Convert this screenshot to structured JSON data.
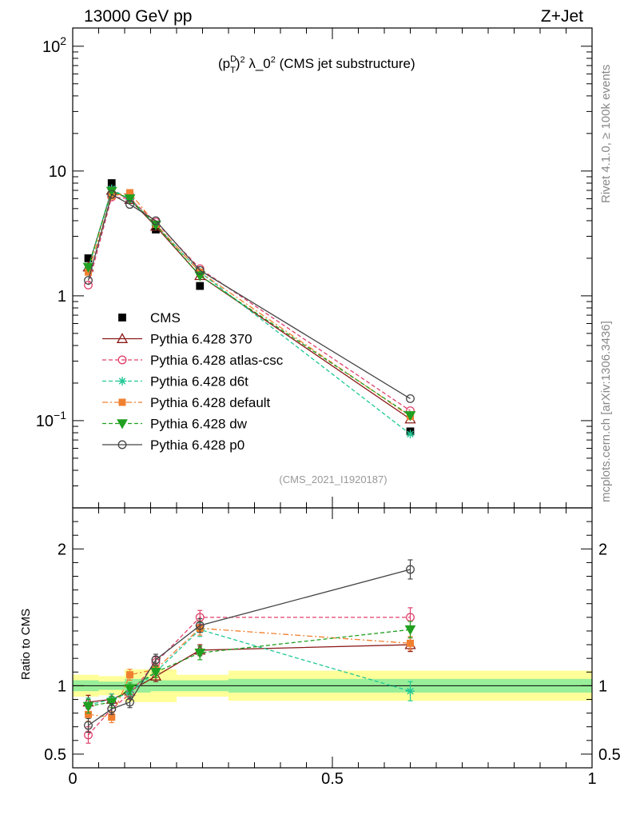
{
  "header": {
    "energy_label": "13000 GeV pp",
    "process_label": "Z+Jet",
    "side_label_top": "Rivet 4.1.0, ≥ 100k events",
    "side_label_bottom": "mcplots.cern.ch [arXiv:1306.3436]"
  },
  "chart_data": [
    {
      "type": "line",
      "scale": "log",
      "title_parts": {
        "p": "(p",
        "sub": "T",
        "sup": "D",
        "post": ")",
        "sq": "2",
        "mid": " λ_0",
        "sq2": "2",
        "rest": " (CMS jet substructure)"
      },
      "watermark": "(CMS_2021_I1920187)",
      "xlim": [
        0,
        1
      ],
      "ylim": [
        0.02,
        140
      ],
      "y_ticks": [
        {
          "value": 100,
          "label": "10",
          "exp": "2"
        },
        {
          "value": 10,
          "label": "10",
          "exp": ""
        },
        {
          "value": 1,
          "label": "1",
          "exp": ""
        },
        {
          "value": 0.1,
          "label": "10",
          "exp": "−1"
        }
      ],
      "x": [
        0.03,
        0.075,
        0.11,
        0.16,
        0.245,
        0.65
      ],
      "data": {
        "name": "CMS",
        "values": [
          2.0,
          8.0,
          6.2,
          3.4,
          1.2,
          0.082
        ],
        "bin_edges": [
          0.0,
          0.05,
          0.1,
          0.15,
          0.2,
          0.3,
          1.0
        ]
      },
      "series": [
        {
          "name": "Pythia 6.428 370",
          "color": "#8b1a1a",
          "dash": "",
          "marker": "triangle-open",
          "values": [
            1.7,
            7.0,
            5.9,
            3.6,
            1.45,
            0.103
          ]
        },
        {
          "name": "Pythia 6.428 atlas-csc",
          "color": "#e0406a",
          "dash": "5,3",
          "marker": "circle-open",
          "values": [
            1.22,
            6.2,
            6.0,
            3.9,
            1.65,
            0.12
          ]
        },
        {
          "name": "Pythia 6.428 d6t",
          "color": "#20c896",
          "dash": "5,3",
          "marker": "star",
          "values": [
            1.65,
            7.2,
            5.9,
            3.7,
            1.55,
            0.078
          ]
        },
        {
          "name": "Pythia 6.428 default",
          "color": "#f08030",
          "dash": "7,3,2,3",
          "marker": "square",
          "values": [
            1.55,
            6.3,
            6.7,
            3.75,
            1.55,
            0.108
          ]
        },
        {
          "name": "Pythia 6.428 dw",
          "color": "#20a020",
          "dash": "5,3",
          "marker": "triangle-down",
          "values": [
            1.7,
            6.9,
            6.0,
            3.7,
            1.45,
            0.11
          ]
        },
        {
          "name": "Pythia 6.428 p0",
          "color": "#444444",
          "dash": "",
          "marker": "circle-open",
          "values": [
            1.33,
            6.5,
            5.4,
            4.0,
            1.6,
            0.15
          ]
        }
      ]
    },
    {
      "type": "line",
      "ylabel": "Ratio to CMS",
      "xlim": [
        0,
        1
      ],
      "ylim": [
        0.4,
        2.3
      ],
      "x_ticks": [
        {
          "value": 0,
          "label": "0"
        },
        {
          "value": 0.5,
          "label": "0.5"
        },
        {
          "value": 1,
          "label": "1"
        }
      ],
      "y_ticks": [
        {
          "value": 2,
          "label": "2"
        },
        {
          "value": 1,
          "label": "1"
        },
        {
          "value": 0.5,
          "label": "0.5"
        }
      ],
      "bands": {
        "bin_edges": [
          0.0,
          0.05,
          0.1,
          0.15,
          0.2,
          0.3,
          1.0
        ],
        "inner": [
          0.04,
          0.03,
          0.05,
          0.04,
          0.04,
          0.05
        ],
        "outer": [
          0.08,
          0.07,
          0.12,
          0.12,
          0.08,
          0.11
        ]
      },
      "x": [
        0.03,
        0.075,
        0.11,
        0.16,
        0.245,
        0.65
      ],
      "series": [
        {
          "name": "Pythia 6.428 370",
          "color": "#8b1a1a",
          "dash": "",
          "marker": "triangle-open",
          "values": [
            0.88,
            0.9,
            0.96,
            1.07,
            1.26,
            1.3
          ],
          "err": [
            0.05,
            0.04,
            0.04,
            0.04,
            0.04,
            0.05
          ]
        },
        {
          "name": "Pythia 6.428 atlas-csc",
          "color": "#e0406a",
          "dash": "5,3",
          "marker": "circle-open",
          "values": [
            0.64,
            0.83,
            0.94,
            1.17,
            1.5,
            1.5
          ],
          "err": [
            0.06,
            0.04,
            0.04,
            0.04,
            0.05,
            0.07
          ]
        },
        {
          "name": "Pythia 6.428 d6t",
          "color": "#20c896",
          "dash": "5,3",
          "marker": "star",
          "values": [
            0.86,
            0.9,
            0.95,
            1.1,
            1.41,
            0.96
          ],
          "err": [
            0.05,
            0.04,
            0.04,
            0.04,
            0.05,
            0.07
          ]
        },
        {
          "name": "Pythia 6.428 default",
          "color": "#f08030",
          "dash": "7,3,2,3",
          "marker": "square",
          "values": [
            0.79,
            0.77,
            1.08,
            1.12,
            1.42,
            1.31
          ],
          "err": [
            0.05,
            0.04,
            0.04,
            0.04,
            0.05,
            0.05
          ]
        },
        {
          "name": "Pythia 6.428 dw",
          "color": "#20a020",
          "dash": "5,3",
          "marker": "triangle-down",
          "values": [
            0.85,
            0.88,
            0.98,
            1.1,
            1.24,
            1.41
          ],
          "err": [
            0.05,
            0.04,
            0.04,
            0.04,
            0.05,
            0.06
          ]
        },
        {
          "name": "Pythia 6.428 p0",
          "color": "#444444",
          "dash": "",
          "marker": "circle-open",
          "values": [
            0.71,
            0.83,
            0.88,
            1.19,
            1.44,
            1.85
          ],
          "err": [
            0.05,
            0.04,
            0.04,
            0.04,
            0.05,
            0.07
          ]
        }
      ]
    }
  ]
}
